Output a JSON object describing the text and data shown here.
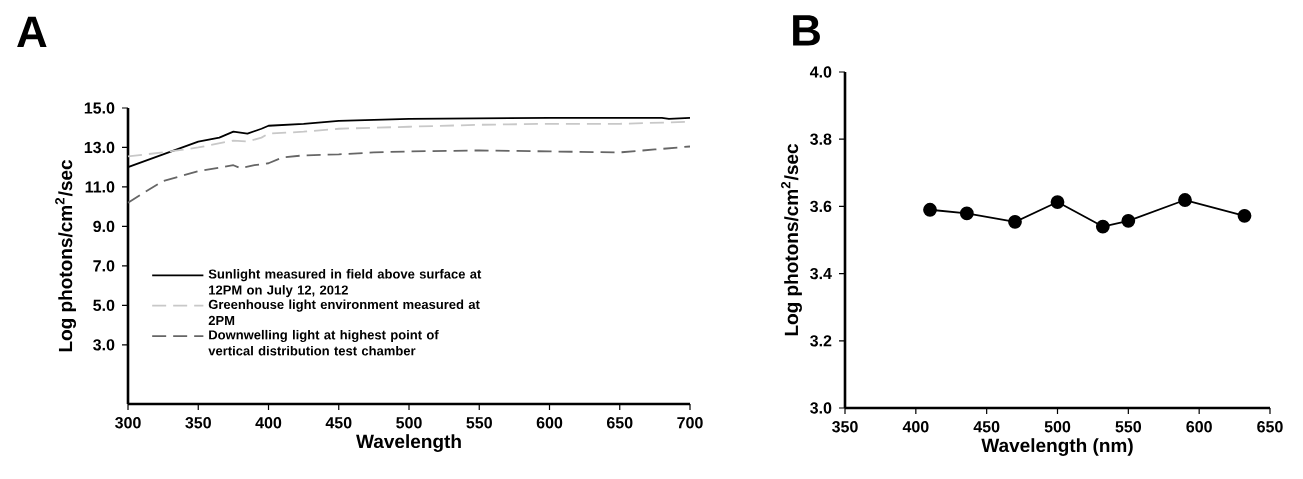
{
  "chart_data": [
    {
      "type": "line",
      "annotations": [
        "A"
      ],
      "xlabel": "Wavelength",
      "ylabel": "Log photons/cm$^{2}$/sec",
      "xlim": [
        300,
        700
      ],
      "xticks": [
        300,
        350,
        400,
        450,
        500,
        550,
        600,
        650,
        700
      ],
      "ylim": [
        0,
        15
      ],
      "yticks": [
        {
          "value": 3,
          "label": "3.0"
        },
        {
          "value": 5,
          "label": "5.0"
        },
        {
          "value": 7,
          "label": "7.0"
        },
        {
          "value": 9,
          "label": "9.0"
        },
        {
          "value": 11,
          "label": "11.0"
        },
        {
          "value": 13,
          "label": "13.0"
        },
        {
          "value": 15,
          "label": "15.0"
        }
      ],
      "legend": "bottom left",
      "series": [
        {
          "name": "Sunlight measured in field above surface at 12PM on July 12, 2012",
          "color": "#000000",
          "line_style": "solid",
          "x": [
            300,
            325,
            350,
            365,
            375,
            385,
            395,
            400,
            425,
            450,
            500,
            600,
            650,
            680,
            685,
            700
          ],
          "values": [
            12.0,
            12.65,
            13.3,
            13.5,
            13.8,
            13.7,
            13.95,
            14.1,
            14.2,
            14.35,
            14.45,
            14.5,
            14.5,
            14.5,
            14.45,
            14.5
          ]
        },
        {
          "name": "Greenhouse light environment measured at 2PM",
          "color": "#c8c8c8",
          "line_style": "dashed",
          "x": [
            300,
            325,
            350,
            375,
            385,
            395,
            400,
            425,
            450,
            500,
            550,
            600,
            650,
            700
          ],
          "values": [
            12.55,
            12.75,
            13.0,
            13.35,
            13.3,
            13.5,
            13.7,
            13.8,
            13.95,
            14.05,
            14.15,
            14.2,
            14.2,
            14.3
          ]
        },
        {
          "name": "Downwelling light at highest point of vertical distribution test chamber",
          "color": "#666666",
          "line_style": "dashed",
          "x": [
            300,
            310,
            325,
            350,
            375,
            380,
            390,
            400,
            410,
            425,
            450,
            475,
            500,
            550,
            600,
            650,
            675,
            700
          ],
          "values": [
            10.2,
            10.65,
            11.3,
            11.8,
            12.1,
            11.95,
            12.1,
            12.2,
            12.5,
            12.6,
            12.65,
            12.75,
            12.8,
            12.85,
            12.8,
            12.75,
            12.9,
            13.05
          ]
        }
      ]
    },
    {
      "type": "line",
      "annotations": [
        "B"
      ],
      "xlabel": "Wavelength (nm)",
      "ylabel": "Log photons/cm$^{2}$/sec",
      "xlim": [
        350,
        650
      ],
      "xticks": [
        350,
        400,
        450,
        500,
        550,
        600,
        650
      ],
      "ylim": [
        3,
        4
      ],
      "yticks": [
        {
          "value": 3,
          "label": "3.0"
        },
        {
          "value": 3.2,
          "label": "3.2"
        },
        {
          "value": 3.4,
          "label": "3.4"
        },
        {
          "value": 3.6,
          "label": "3.6"
        },
        {
          "value": 3.8,
          "label": "3.8"
        },
        {
          "value": 4,
          "label": "4.0"
        }
      ],
      "marker": "circle",
      "color": "#000000",
      "x": [
        410,
        436,
        470,
        500,
        532,
        550,
        590,
        632
      ],
      "values": [
        3.59,
        3.579,
        3.554,
        3.613,
        3.54,
        3.557,
        3.619,
        3.572
      ]
    }
  ]
}
